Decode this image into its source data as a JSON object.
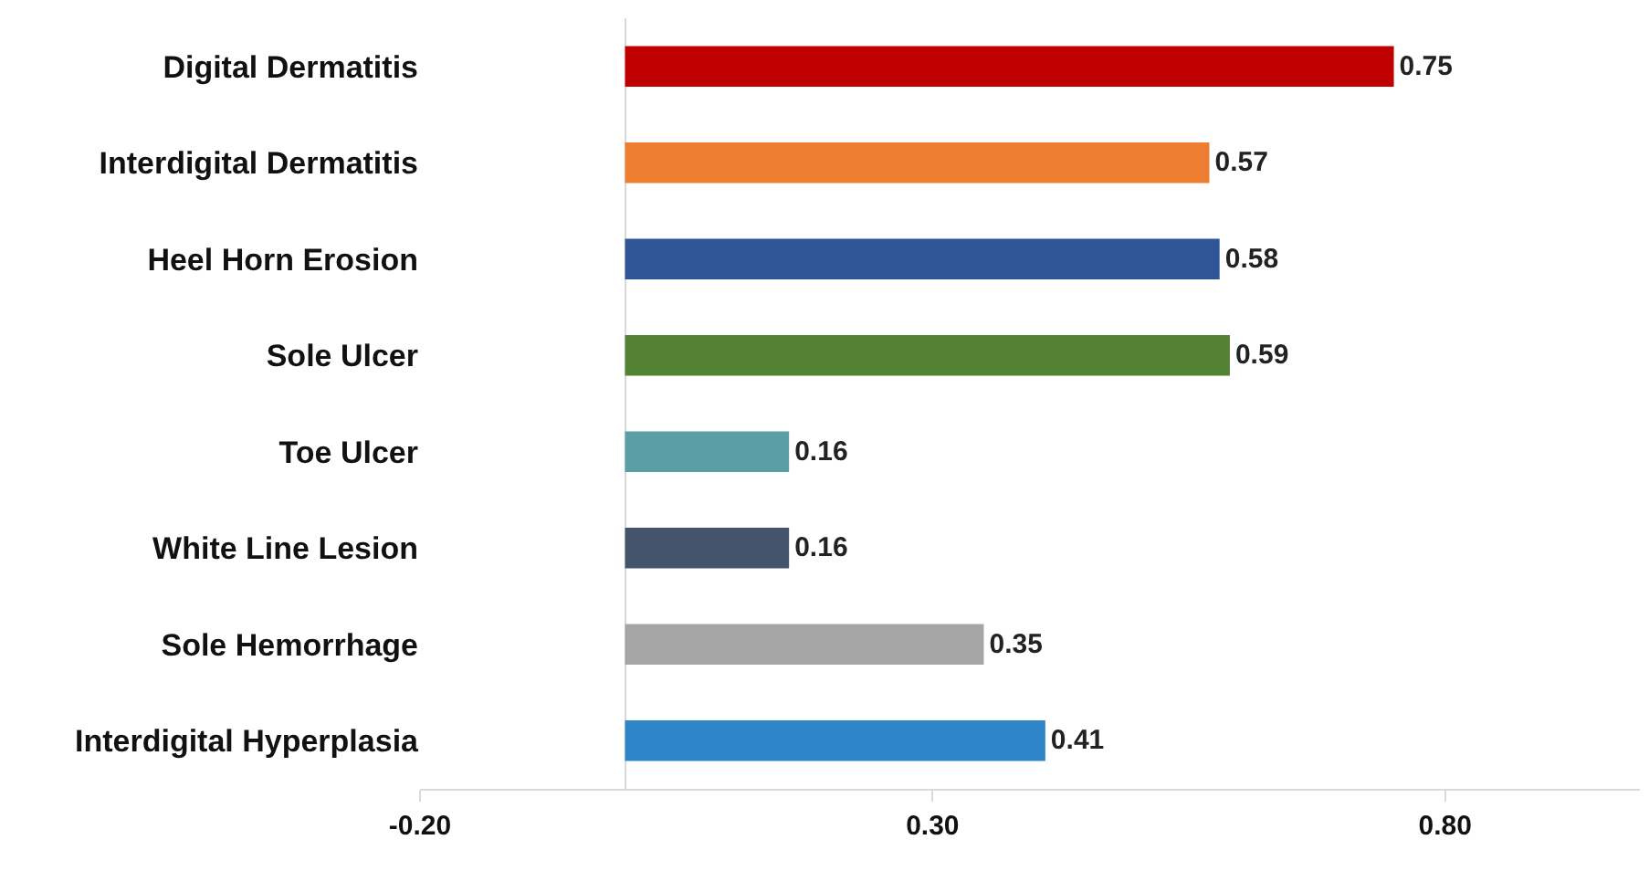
{
  "chart_data": {
    "type": "bar",
    "orientation": "horizontal",
    "categories": [
      "Digital Dermatitis",
      "Interdigital Dermatitis",
      "Heel Horn Erosion",
      "Sole Ulcer",
      "Toe Ulcer",
      "White Line Lesion",
      "Sole Hemorrhage",
      "Interdigital Hyperplasia"
    ],
    "values": [
      0.75,
      0.57,
      0.58,
      0.59,
      0.16,
      0.16,
      0.35,
      0.41
    ],
    "colors": [
      "#c00000",
      "#ed7d31",
      "#2f5597",
      "#548235",
      "#5b9ea6",
      "#44546a",
      "#a5a5a5",
      "#2e86c8"
    ],
    "xlim": [
      -0.2,
      0.99
    ],
    "xticks": [
      {
        "value": -0.2,
        "label": "-0.20"
      },
      {
        "value": 0.3,
        "label": "0.30"
      },
      {
        "value": 0.8,
        "label": "0.80"
      }
    ],
    "data_labels": true
  }
}
